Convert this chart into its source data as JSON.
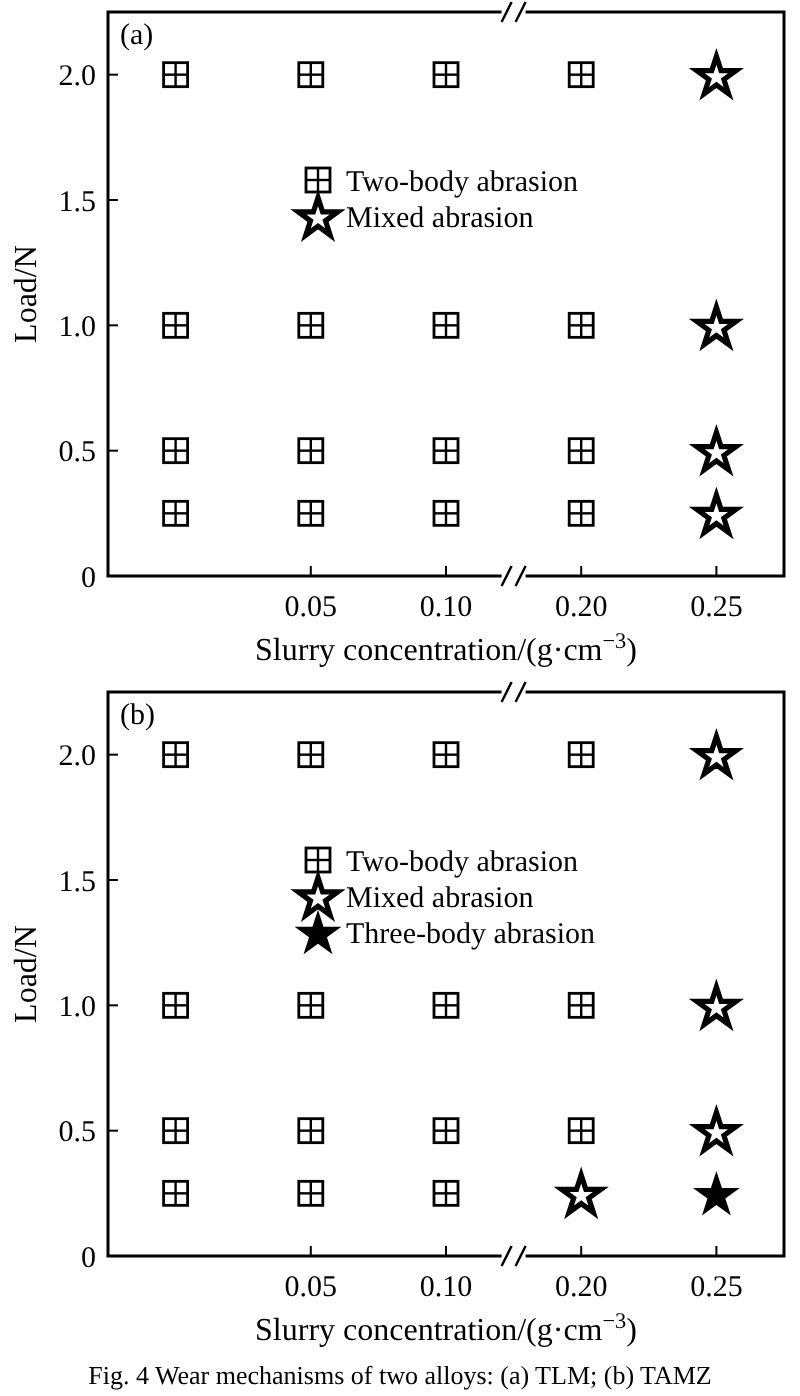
{
  "chart_data": [
    {
      "type": "scatter",
      "title": "(a)",
      "xlabel": "Slurry concentration/(g·cm$^{−3}$)",
      "ylabel": "Load/N",
      "categories": [
        null,
        "0.05",
        "0.10",
        "0.20",
        "0.25"
      ],
      "ylim": [
        0,
        2.25
      ],
      "yticks": [
        0,
        {
          "value": 0.5,
          "label": "0.5"
        },
        {
          "value": 1,
          "label": "1.0"
        },
        {
          "value": 1.5,
          "label": "1.5"
        },
        {
          "value": 2,
          "label": "2.0"
        }
      ],
      "legend": "top",
      "grid": false,
      "series": [
        {
          "name": "Two-body abrasion",
          "color": "#000000",
          "marker": "square",
          "values": [
            2,
            2,
            2,
            2,
            null
          ]
        },
        {
          "color": "#000000",
          "marker": "square",
          "values": [
            1,
            1,
            1,
            1,
            null
          ]
        },
        {
          "color": "#000000",
          "marker": "square",
          "values": [
            0.5,
            0.5,
            0.5,
            0.5,
            null
          ]
        },
        {
          "color": "#000000",
          "marker": "square",
          "values": [
            0.25,
            0.25,
            0.25,
            0.25,
            null
          ]
        },
        {
          "name": "Mixed abrasion",
          "color": "#000000",
          "marker": "star-open",
          "values": [
            null,
            null,
            null,
            null,
            2
          ]
        },
        {
          "color": "#000000",
          "marker": "star-open",
          "values": [
            null,
            null,
            null,
            null,
            1
          ]
        },
        {
          "color": "#000000",
          "marker": "star-open",
          "values": [
            null,
            null,
            null,
            null,
            0.5
          ]
        },
        {
          "color": "#000000",
          "marker": "star-open",
          "values": [
            null,
            null,
            null,
            null,
            0.25
          ]
        }
      ]
    },
    {
      "type": "scatter",
      "title": "(b)",
      "xlabel": "Slurry concentration/(g·cm$^{−3}$)",
      "ylabel": "Load/N",
      "categories": [
        null,
        "0.05",
        "0.10",
        "0.20",
        "0.25"
      ],
      "ylim": [
        0,
        2.25
      ],
      "yticks": [
        0,
        {
          "value": 0.5,
          "label": "0.5"
        },
        {
          "value": 1,
          "label": "1.0"
        },
        {
          "value": 1.5,
          "label": "1.5"
        },
        {
          "value": 2,
          "label": "2.0"
        }
      ],
      "legend": "top",
      "grid": false,
      "annotations": [
        "Fig. 4    Wear mechanisms of two alloys: (a) TLM; (b) TAMZ"
      ],
      "series": [
        {
          "name": "Two-body abrasion",
          "color": "#000000",
          "marker": "square",
          "values": [
            2,
            2,
            2,
            2,
            null
          ]
        },
        {
          "color": "#000000",
          "marker": "square",
          "values": [
            1,
            1,
            1,
            1,
            null
          ]
        },
        {
          "color": "#000000",
          "marker": "square",
          "values": [
            0.5,
            0.5,
            0.5,
            0.5,
            null
          ]
        },
        {
          "color": "#000000",
          "marker": "square",
          "values": [
            0.25,
            0.25,
            0.25,
            null,
            null
          ]
        },
        {
          "name": "Mixed abrasion",
          "color": "#000000",
          "marker": "star-open",
          "values": [
            null,
            null,
            null,
            null,
            2
          ]
        },
        {
          "color": "#000000",
          "marker": "star-open",
          "values": [
            null,
            null,
            null,
            null,
            1
          ]
        },
        {
          "color": "#000000",
          "marker": "star-open",
          "values": [
            null,
            null,
            null,
            null,
            0.5
          ]
        },
        {
          "color": "#000000",
          "marker": "star-open",
          "values": [
            null,
            null,
            null,
            0.25,
            null
          ]
        },
        {
          "name": "Three-body abrasion",
          "color": "#000000",
          "marker": "star",
          "values": [
            null,
            null,
            null,
            null,
            0.25
          ]
        }
      ]
    }
  ]
}
